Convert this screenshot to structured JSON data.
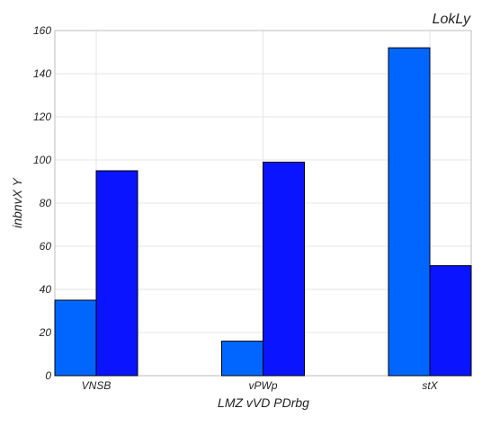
{
  "chart_data": {
    "type": "bar",
    "title": "LokLy",
    "xlabel": "LMZ vVD PDrbg",
    "ylabel": "inbnvX Y",
    "categories": [
      "VNSB",
      "vPWp",
      "stX"
    ],
    "series": [
      {
        "values": [
          35,
          16,
          152
        ],
        "color": "#0066ff"
      },
      {
        "values": [
          95,
          99,
          51
        ],
        "color": "#0a14ff"
      }
    ],
    "ylim": [
      0,
      160
    ],
    "yticks": [
      0,
      20,
      40,
      60,
      80,
      100,
      120,
      140,
      160
    ],
    "grid": true
  }
}
